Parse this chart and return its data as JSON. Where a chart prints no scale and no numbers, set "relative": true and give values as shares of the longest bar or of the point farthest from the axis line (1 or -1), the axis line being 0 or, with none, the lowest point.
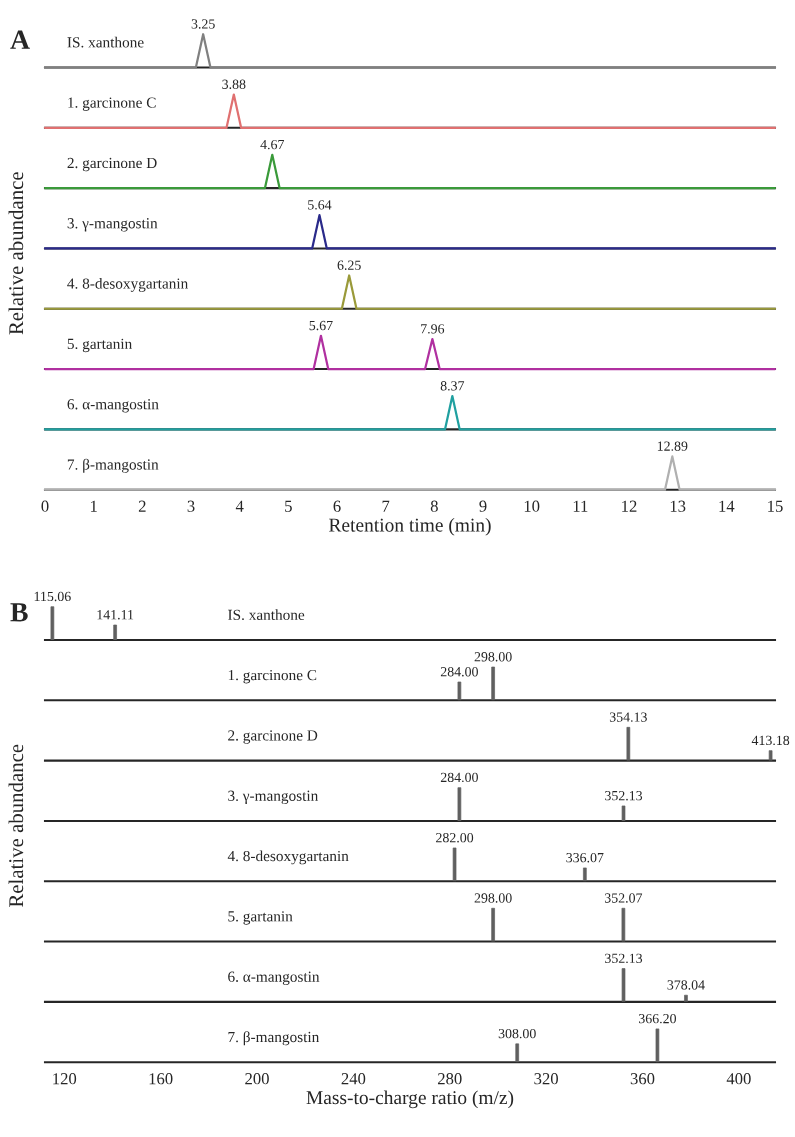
{
  "chart_data": [
    {
      "type": "line",
      "relative": true,
      "title": "A",
      "ylabel": "Relative abundance",
      "xlim": [
        0,
        15
      ],
      "tick_labels": false,
      "legend": false,
      "series": [
        {
          "name": "IS. xanthone",
          "color": "#808080",
          "x": [
            0,
            3.1,
            3.25,
            3.4,
            15
          ],
          "values": [
            0,
            0,
            1,
            0,
            0
          ]
        }
      ],
      "annotations": [
        {
          "text": "3.25",
          "x": 3.25,
          "y": 1
        }
      ]
    },
    {
      "type": "line",
      "relative": true,
      "xlim": [
        0,
        15
      ],
      "tick_labels": false,
      "legend": false,
      "series": [
        {
          "name": "1. garcinone C",
          "color": "#e07070",
          "x": [
            0,
            3.73,
            3.88,
            4.03,
            15
          ],
          "values": [
            0,
            0,
            1,
            0,
            0
          ]
        }
      ],
      "annotations": [
        {
          "text": "3.88",
          "x": 3.88,
          "y": 1
        }
      ]
    },
    {
      "type": "line",
      "relative": true,
      "xlim": [
        0,
        15
      ],
      "tick_labels": false,
      "legend": false,
      "series": [
        {
          "name": "2. garcinone D",
          "color": "#3a9a3a",
          "x": [
            0,
            4.52,
            4.67,
            4.82,
            15
          ],
          "values": [
            0,
            0,
            1,
            0,
            0
          ]
        }
      ],
      "annotations": [
        {
          "text": "4.67",
          "x": 4.67,
          "y": 1
        }
      ]
    },
    {
      "type": "line",
      "relative": true,
      "xlim": [
        0,
        15
      ],
      "tick_labels": false,
      "legend": false,
      "series": [
        {
          "name": "3. γ-mangostin",
          "color": "#2a2a8a",
          "x": [
            0,
            5.49,
            5.64,
            5.79,
            15
          ],
          "values": [
            0,
            0,
            1,
            0,
            0
          ]
        }
      ],
      "annotations": [
        {
          "text": "5.64",
          "x": 5.64,
          "y": 1
        }
      ]
    },
    {
      "type": "line",
      "relative": true,
      "xlim": [
        0,
        15
      ],
      "tick_labels": false,
      "legend": false,
      "series": [
        {
          "name": "4. 8-desoxygartanin",
          "color": "#9a9a3a",
          "x": [
            0,
            6.1,
            6.25,
            6.4,
            15
          ],
          "values": [
            0,
            0,
            1,
            0,
            0
          ]
        }
      ],
      "annotations": [
        {
          "text": "6.25",
          "x": 6.25,
          "y": 1
        }
      ]
    },
    {
      "type": "line",
      "relative": true,
      "xlim": [
        0,
        15
      ],
      "tick_labels": false,
      "legend": false,
      "series": [
        {
          "name": "5. gartanin",
          "color": "#b030a0",
          "x": [
            0,
            5.52,
            5.67,
            5.82,
            7.81,
            7.96,
            8.11,
            15
          ],
          "values": [
            0,
            0,
            1,
            0,
            0,
            0.9,
            0,
            0
          ]
        }
      ],
      "annotations": [
        {
          "text": "5.67",
          "x": 5.67,
          "y": 1
        },
        {
          "text": "7.96",
          "x": 7.96,
          "y": 0.9
        }
      ]
    },
    {
      "type": "line",
      "relative": true,
      "xlim": [
        0,
        15
      ],
      "tick_labels": false,
      "legend": false,
      "series": [
        {
          "name": "6. α-mangostin",
          "color": "#20a0a0",
          "x": [
            0,
            8.22,
            8.37,
            8.52,
            15
          ],
          "values": [
            0,
            0,
            1,
            0,
            0
          ]
        }
      ],
      "annotations": [
        {
          "text": "8.37",
          "x": 8.37,
          "y": 1
        }
      ]
    },
    {
      "type": "line",
      "relative": true,
      "xlim": [
        0,
        15
      ],
      "xticks": [
        0,
        1,
        2,
        3,
        4,
        5,
        6,
        7,
        8,
        9,
        10,
        11,
        12,
        13,
        14,
        15
      ],
      "tick_labels": "x",
      "xlabel": "Retention time (min)",
      "legend": false,
      "series": [
        {
          "name": "7. β-mangostin",
          "color": "#b0b0b0",
          "x": [
            0,
            12.74,
            12.89,
            13.04,
            15
          ],
          "values": [
            0,
            0,
            1,
            0,
            0
          ]
        }
      ],
      "annotations": [
        {
          "text": "12.89",
          "x": 12.89,
          "y": 1
        }
      ]
    },
    {
      "type": "bar",
      "relative": true,
      "title": "B",
      "ylabel": "Relative abundance",
      "xlim": [
        112,
        415
      ],
      "tick_labels": false,
      "legend": false,
      "series": [
        {
          "name": "IS. xanthone",
          "color": "#606060",
          "x": [
            115.06,
            141.11
          ],
          "values": [
            1,
            0.45
          ]
        }
      ],
      "annotations": [
        {
          "text": "115.06",
          "x": 115.06,
          "y": 1
        },
        {
          "text": "141.11",
          "x": 141.11,
          "y": 0.45
        }
      ]
    },
    {
      "type": "bar",
      "relative": true,
      "xlim": [
        112,
        415
      ],
      "tick_labels": false,
      "legend": false,
      "series": [
        {
          "name": "1. garcinone C",
          "color": "#606060",
          "x": [
            284.0,
            298.0
          ],
          "values": [
            0.55,
            1
          ]
        }
      ],
      "annotations": [
        {
          "text": "284.00",
          "x": 284.0,
          "y": 0.55
        },
        {
          "text": "298.00",
          "x": 298.0,
          "y": 1
        }
      ]
    },
    {
      "type": "bar",
      "relative": true,
      "xlim": [
        112,
        415
      ],
      "tick_labels": false,
      "legend": false,
      "series": [
        {
          "name": "2. garcinone D",
          "color": "#606060",
          "x": [
            354.13,
            413.18
          ],
          "values": [
            1,
            0.3
          ]
        }
      ],
      "annotations": [
        {
          "text": "354.13",
          "x": 354.13,
          "y": 1
        },
        {
          "text": "413.18",
          "x": 413.18,
          "y": 0.3
        }
      ]
    },
    {
      "type": "bar",
      "relative": true,
      "xlim": [
        112,
        415
      ],
      "tick_labels": false,
      "legend": false,
      "series": [
        {
          "name": "3. γ-mangostin",
          "color": "#606060",
          "x": [
            284.0,
            352.13
          ],
          "values": [
            1,
            0.45
          ]
        }
      ],
      "annotations": [
        {
          "text": "284.00",
          "x": 284.0,
          "y": 1
        },
        {
          "text": "352.13",
          "x": 352.13,
          "y": 0.45
        }
      ]
    },
    {
      "type": "bar",
      "relative": true,
      "xlim": [
        112,
        415
      ],
      "tick_labels": false,
      "legend": false,
      "series": [
        {
          "name": "4. 8-desoxygartanin",
          "color": "#606060",
          "x": [
            282.0,
            336.07
          ],
          "values": [
            1,
            0.4
          ]
        }
      ],
      "annotations": [
        {
          "text": "282.00",
          "x": 282.0,
          "y": 1
        },
        {
          "text": "336.07",
          "x": 336.07,
          "y": 0.4
        }
      ]
    },
    {
      "type": "bar",
      "relative": true,
      "xlim": [
        112,
        415
      ],
      "tick_labels": false,
      "legend": false,
      "series": [
        {
          "name": "5. gartanin",
          "color": "#606060",
          "x": [
            298.0,
            352.07
          ],
          "values": [
            1,
            1
          ]
        }
      ],
      "annotations": [
        {
          "text": "298.00",
          "x": 298.0,
          "y": 1
        },
        {
          "text": "352.07",
          "x": 352.07,
          "y": 1
        }
      ]
    },
    {
      "type": "bar",
      "relative": true,
      "xlim": [
        112,
        415
      ],
      "tick_labels": false,
      "legend": false,
      "series": [
        {
          "name": "6. α-mangostin",
          "color": "#606060",
          "x": [
            352.13,
            378.04
          ],
          "values": [
            1,
            0.2
          ]
        }
      ],
      "annotations": [
        {
          "text": "352.13",
          "x": 352.13,
          "y": 1
        },
        {
          "text": "378.04",
          "x": 378.04,
          "y": 0.2
        }
      ]
    },
    {
      "type": "bar",
      "relative": true,
      "xlim": [
        112,
        415
      ],
      "xticks": [
        120,
        160,
        200,
        240,
        280,
        320,
        360,
        400
      ],
      "tick_labels": "x",
      "xlabel": "Mass-to-charge ratio (m/z)",
      "legend": false,
      "series": [
        {
          "name": "7. β-mangostin",
          "color": "#606060",
          "x": [
            308.0,
            366.2
          ],
          "values": [
            0.55,
            1
          ]
        }
      ],
      "annotations": [
        {
          "text": "308.00",
          "x": 308.0,
          "y": 0.55
        },
        {
          "text": "366.20",
          "x": 366.2,
          "y": 1
        }
      ]
    }
  ]
}
